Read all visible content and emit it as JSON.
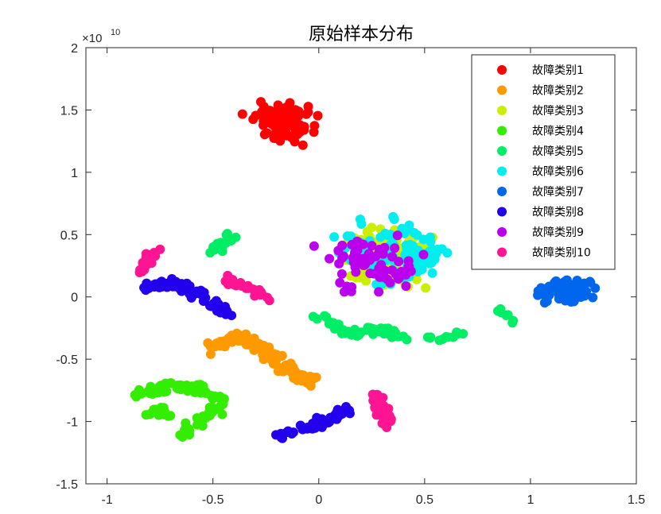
{
  "chart_data": {
    "type": "scatter",
    "title": "原始样本分布",
    "xlabel": "",
    "ylabel": "",
    "y_exponent_label": "×10",
    "y_exponent_power": "10",
    "xlim": [
      -1.1,
      1.5
    ],
    "ylim": [
      -1.5,
      2.0
    ],
    "x_ticks": [
      -1,
      -0.5,
      0,
      0.5,
      1,
      1.5
    ],
    "x_tick_labels": [
      "-1",
      "-0.5",
      "0",
      "0.5",
      "1",
      "1.5"
    ],
    "y_ticks": [
      -1.5,
      -1,
      -0.5,
      0,
      0.5,
      1,
      1.5,
      2
    ],
    "y_tick_labels": [
      "-1.5",
      "-1",
      "-0.5",
      "0",
      "0.5",
      "1",
      "1.5",
      "2"
    ],
    "grid": false,
    "legend_position": "top-right",
    "series": [
      {
        "name": "故障类别1",
        "color": "#ff0000",
        "clusters": [
          {
            "type": "blob",
            "cx": -0.17,
            "cy": 1.4,
            "sx": 0.09,
            "sy": 0.09,
            "n": 95
          }
        ]
      },
      {
        "name": "故障类别2",
        "color": "#ff9900",
        "clusters": [
          {
            "type": "path",
            "points": [
              [
                -0.5,
                -0.4
              ],
              [
                -0.4,
                -0.3
              ],
              [
                -0.28,
                -0.38
              ],
              [
                -0.2,
                -0.52
              ],
              [
                -0.1,
                -0.62
              ],
              [
                -0.02,
                -0.7
              ]
            ],
            "n": 120,
            "spread": 0.035
          }
        ]
      },
      {
        "name": "故障类别3",
        "color": "#ccee00",
        "clusters": [
          {
            "type": "blob",
            "cx": 0.3,
            "cy": 0.3,
            "sx": 0.12,
            "sy": 0.14,
            "n": 130
          }
        ]
      },
      {
        "name": "故障类别4",
        "color": "#33ee00",
        "clusters": [
          {
            "type": "path",
            "points": [
              [
                -0.85,
                -0.8
              ],
              [
                -0.7,
                -0.7
              ],
              [
                -0.55,
                -0.75
              ],
              [
                -0.45,
                -0.85
              ]
            ],
            "n": 60,
            "spread": 0.03
          },
          {
            "type": "path",
            "points": [
              [
                -0.45,
                -0.85
              ],
              [
                -0.55,
                -0.98
              ],
              [
                -0.65,
                -1.12
              ]
            ],
            "n": 30,
            "spread": 0.03
          },
          {
            "type": "path",
            "points": [
              [
                -0.8,
                -0.92
              ],
              [
                -0.7,
                -0.95
              ],
              [
                -0.75,
                -0.88
              ]
            ],
            "n": 20,
            "spread": 0.03
          }
        ]
      },
      {
        "name": "故障类别5",
        "color": "#00ee66",
        "clusters": [
          {
            "type": "path",
            "points": [
              [
                -0.5,
                0.35
              ],
              [
                -0.4,
                0.5
              ]
            ],
            "n": 18,
            "spread": 0.025
          },
          {
            "type": "path",
            "points": [
              [
                0.0,
                -0.15
              ],
              [
                0.15,
                -0.3
              ],
              [
                0.3,
                -0.25
              ],
              [
                0.4,
                -0.32
              ]
            ],
            "n": 55,
            "spread": 0.03
          },
          {
            "type": "path",
            "points": [
              [
                0.5,
                -0.35
              ],
              [
                0.67,
                -0.3
              ]
            ],
            "n": 12,
            "spread": 0.03
          },
          {
            "type": "path",
            "points": [
              [
                0.85,
                -0.1
              ],
              [
                0.92,
                -0.2
              ]
            ],
            "n": 8,
            "spread": 0.02
          }
        ]
      },
      {
        "name": "故障类别6",
        "color": "#00eeee",
        "clusters": [
          {
            "type": "blob",
            "cx": 0.38,
            "cy": 0.35,
            "sx": 0.15,
            "sy": 0.16,
            "n": 110
          }
        ]
      },
      {
        "name": "故障类别7",
        "color": "#0066ee",
        "clusters": [
          {
            "type": "blob",
            "cx": 1.17,
            "cy": 0.05,
            "sx": 0.07,
            "sy": 0.05,
            "n": 120
          }
        ]
      },
      {
        "name": "故障类别8",
        "color": "#2200ee",
        "clusters": [
          {
            "type": "path",
            "points": [
              [
                -0.83,
                0.08
              ],
              [
                -0.7,
                0.12
              ],
              [
                -0.6,
                0.05
              ],
              [
                -0.5,
                -0.05
              ],
              [
                -0.42,
                -0.15
              ]
            ],
            "n": 70,
            "spread": 0.03
          },
          {
            "type": "path",
            "points": [
              [
                -0.2,
                -1.12
              ],
              [
                -0.05,
                -1.05
              ],
              [
                0.05,
                -0.98
              ],
              [
                0.15,
                -0.9
              ]
            ],
            "n": 45,
            "spread": 0.03
          }
        ]
      },
      {
        "name": "故障类别9",
        "color": "#bb00ee",
        "clusters": [
          {
            "type": "blob",
            "cx": 0.25,
            "cy": 0.25,
            "sx": 0.13,
            "sy": 0.12,
            "n": 75
          }
        ]
      },
      {
        "name": "故障类别10",
        "color": "#ff1493",
        "clusters": [
          {
            "type": "path",
            "points": [
              [
                -0.85,
                0.2
              ],
              [
                -0.78,
                0.4
              ]
            ],
            "n": 18,
            "spread": 0.025
          },
          {
            "type": "path",
            "points": [
              [
                -0.45,
                0.15
              ],
              [
                -0.3,
                0.05
              ],
              [
                -0.23,
                -0.02
              ]
            ],
            "n": 25,
            "spread": 0.025
          },
          {
            "type": "path",
            "points": [
              [
                0.25,
                -0.75
              ],
              [
                0.3,
                -0.9
              ],
              [
                0.32,
                -1.05
              ]
            ],
            "n": 35,
            "spread": 0.03
          }
        ]
      }
    ]
  }
}
